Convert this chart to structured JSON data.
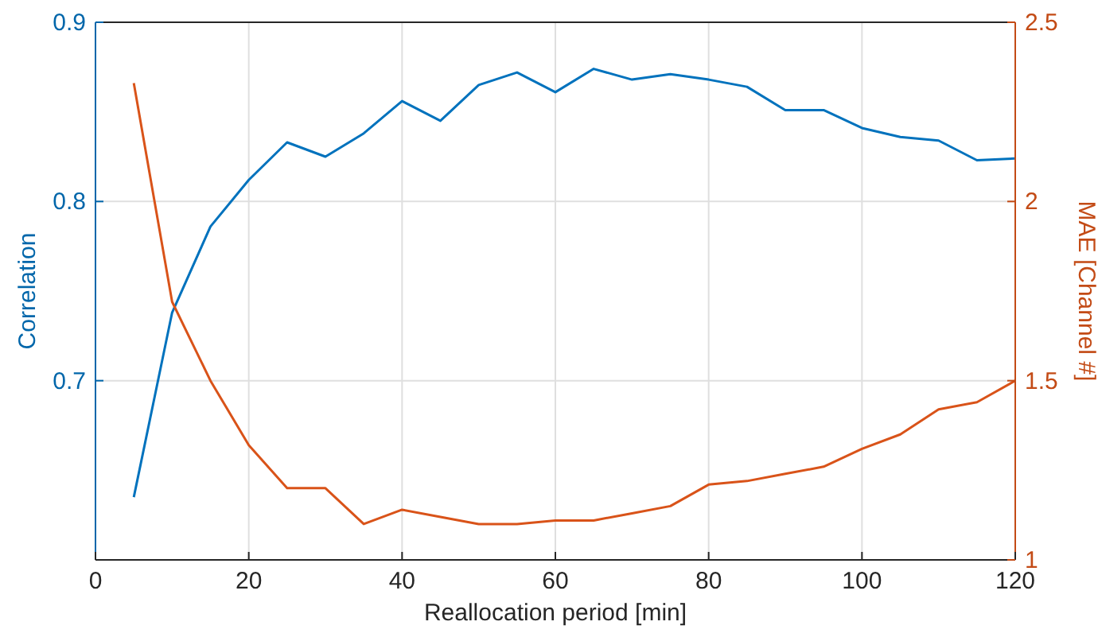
{
  "chart_data": {
    "type": "line",
    "xlabel": "Reallocation period [min]",
    "ylabel": "Correlation",
    "y2label": "MAE [Channel #]",
    "x": [
      5,
      10,
      15,
      20,
      25,
      30,
      35,
      40,
      45,
      50,
      55,
      60,
      65,
      70,
      75,
      80,
      85,
      90,
      95,
      100,
      105,
      110,
      115,
      120
    ],
    "xlim": [
      0,
      120
    ],
    "xticks": [
      0,
      20,
      40,
      60,
      80,
      100,
      120
    ],
    "ylim": [
      0.6,
      0.9
    ],
    "yticks": [
      0.7,
      0.8,
      0.9
    ],
    "y2lim": [
      1,
      2.5
    ],
    "y2ticks": [
      1,
      1.5,
      2,
      2.5
    ],
    "grid": true,
    "marker": "none",
    "line_style": "solid",
    "series": [
      {
        "color": "#0072bd",
        "values": [
          0.635,
          0.738,
          0.786,
          0.812,
          0.833,
          0.825,
          0.838,
          0.856,
          0.845,
          0.865,
          0.872,
          0.861,
          0.874,
          0.868,
          0.871,
          0.868,
          0.864,
          0.851,
          0.851,
          0.841,
          0.836,
          0.834,
          0.823,
          0.824
        ]
      },
      {
        "color": "#d95319",
        "axis": "y2",
        "values": [
          2.33,
          1.72,
          1.5,
          1.32,
          1.2,
          1.2,
          1.1,
          1.14,
          1.12,
          1.1,
          1.1,
          1.11,
          1.11,
          1.13,
          1.15,
          1.21,
          1.22,
          1.24,
          1.26,
          1.31,
          1.35,
          1.42,
          1.44,
          1.5
        ]
      }
    ]
  }
}
